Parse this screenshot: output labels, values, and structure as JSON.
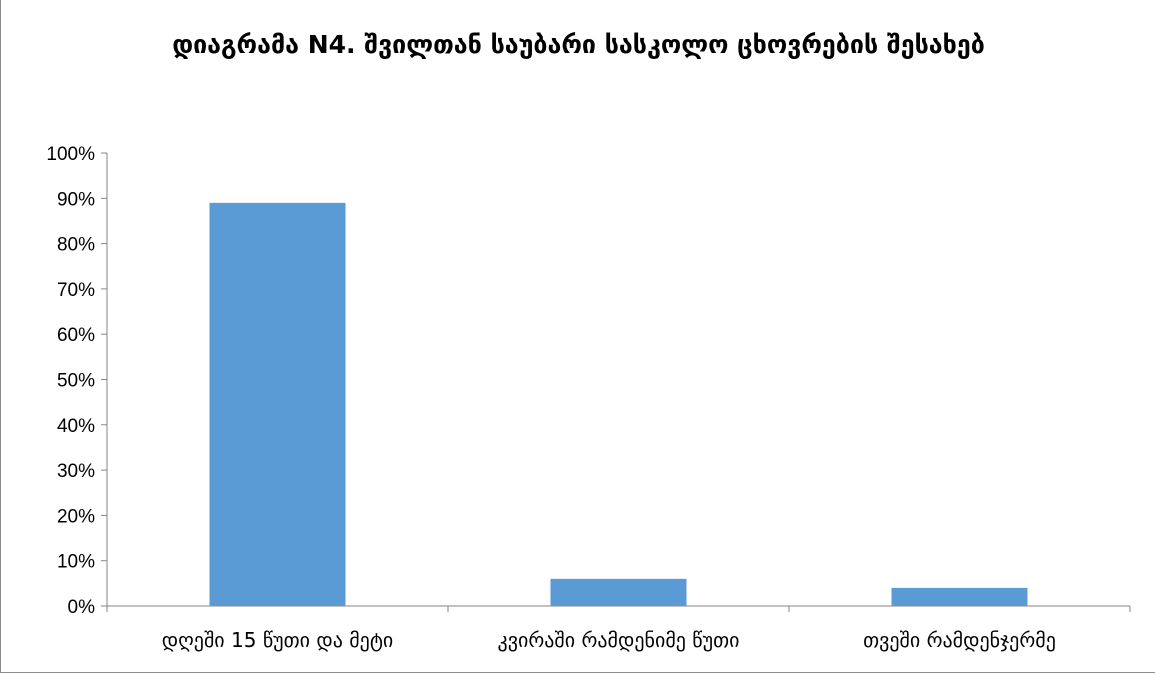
{
  "chart_data": {
    "type": "bar",
    "title": "დიაგრამა N4. შვილთან საუბარი სასკოლო ცხოვრების შესახებ",
    "categories": [
      "დღეში 15 წუთი და მეტი",
      "კვირაში რამდენიმე წუთი",
      "თვეში რამდენჯერმე"
    ],
    "values": [
      89,
      6,
      4
    ],
    "value_unit": "%",
    "ylim": [
      0,
      100
    ],
    "yticks": [
      "0%",
      "10%",
      "20%",
      "30%",
      "40%",
      "50%",
      "60%",
      "70%",
      "80%",
      "90%",
      "100%"
    ],
    "xlabel": "",
    "ylabel": "",
    "grid": false,
    "legend": "none",
    "bar_color": "#5b9bd5",
    "axis_color": "#868686"
  }
}
